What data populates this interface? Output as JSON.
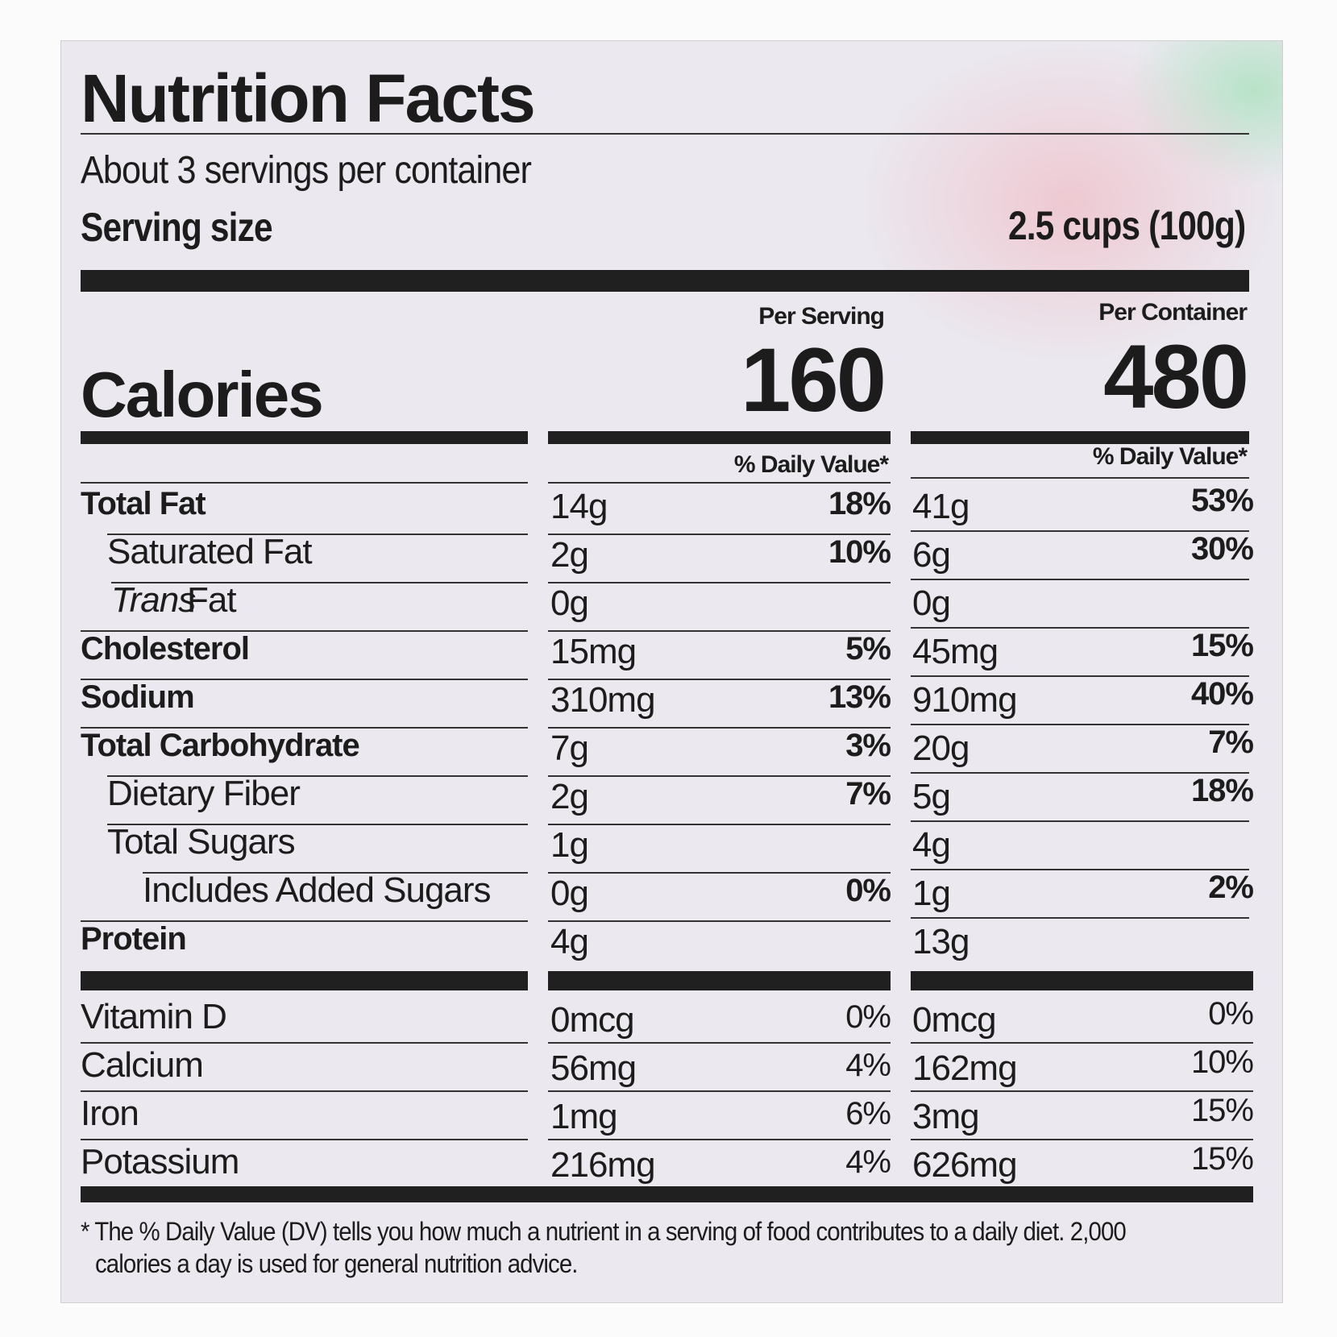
{
  "title": "Nutrition Facts",
  "servings": "About 3 servings per container",
  "serving_size": {
    "label": "Serving size",
    "value": "2.5 cups (100g)"
  },
  "columns": {
    "serving": "Per Serving",
    "container": "Per Container"
  },
  "calories": {
    "label": "Calories",
    "serving": "160",
    "container": "480"
  },
  "dv_header": "% Daily Value*",
  "nutrients": [
    {
      "name": "Total Fat",
      "serving_amount": "14g",
      "serving_dv": "18%",
      "container_amount": "41g",
      "container_dv": "53%"
    },
    {
      "name": "Saturated Fat",
      "serving_amount": "2g",
      "serving_dv": "10%",
      "container_amount": "6g",
      "container_dv": "30%"
    },
    {
      "name_italic": "Trans",
      "name": "Fat",
      "serving_amount": "0g",
      "container_amount": "0g"
    },
    {
      "name": "Cholesterol",
      "serving_amount": "15mg",
      "serving_dv": "5%",
      "container_amount": "45mg",
      "container_dv": "15%"
    },
    {
      "name": "Sodium",
      "serving_amount": "310mg",
      "serving_dv": "13%",
      "container_amount": "910mg",
      "container_dv": "40%"
    },
    {
      "name": "Total Carbohydrate",
      "serving_amount": "7g",
      "serving_dv": "3%",
      "container_amount": "20g",
      "container_dv": "7%"
    },
    {
      "name": "Dietary Fiber",
      "serving_amount": "2g",
      "serving_dv": "7%",
      "container_amount": "5g",
      "container_dv": "18%"
    },
    {
      "name": "Total Sugars",
      "serving_amount": "1g",
      "container_amount": "4g"
    },
    {
      "name": "Includes Added Sugars",
      "serving_amount": "0g",
      "serving_dv": "0%",
      "container_amount": "1g",
      "container_dv": "2%"
    },
    {
      "name": "Protein",
      "serving_amount": "4g",
      "container_amount": "13g"
    }
  ],
  "vitamins": [
    {
      "name": "Vitamin D",
      "serving_amount": "0mcg",
      "serving_dv": "0%",
      "container_amount": "0mcg",
      "container_dv": "0%"
    },
    {
      "name": "Calcium",
      "serving_amount": "56mg",
      "serving_dv": "4%",
      "container_amount": "162mg",
      "container_dv": "10%"
    },
    {
      "name": "Iron",
      "serving_amount": "1mg",
      "serving_dv": "6%",
      "container_amount": "3mg",
      "container_dv": "15%"
    },
    {
      "name": "Potassium",
      "serving_amount": "216mg",
      "serving_dv": "4%",
      "container_amount": "626mg",
      "container_dv": "15%"
    }
  ],
  "footnote": [
    "* The % Daily Value (DV) tells you how much a nutrient in a serving of food contributes to a daily diet. 2,000",
    "calories a day is used for general nutrition advice."
  ]
}
